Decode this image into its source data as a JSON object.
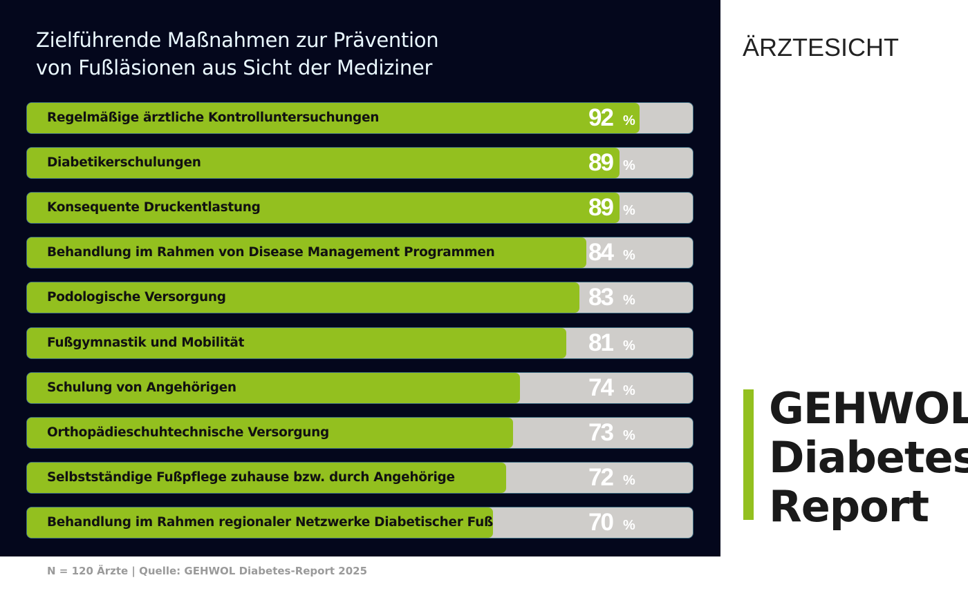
{
  "chart_data": {
    "type": "bar",
    "orientation": "horizontal",
    "title": "Zielführende Maßnahmen zur Prävention von Fußläsionen aus Sicht der Mediziner",
    "title_lines": [
      "Zielführende Maßnahmen zur Prävention",
      "von Fußläsionen aus Sicht der Mediziner"
    ],
    "categories": [
      "Regelmäßige ärztliche Kontrolluntersuchungen",
      "Diabetikerschulungen",
      "Konsequente Druckentlastung",
      "Behandlung im Rahmen von Disease Management Programmen",
      "Podologische Versorgung",
      "Fußgymnastik und Mobilität",
      "Schulung von Angehörigen",
      "Orthopädieschuhtechnische Versorgung",
      "Selbstständige Fußpflege zuhause bzw. durch Angehörige",
      "Behandlung im Rahmen regionaler Netzwerke Diabetischer Fuß"
    ],
    "values": [
      92,
      89,
      89,
      84,
      83,
      81,
      74,
      73,
      72,
      70
    ],
    "unit": "%",
    "xlim": [
      0,
      100
    ],
    "grid": false,
    "colors": {
      "bar": "#93c01f",
      "track": "#cfcdca",
      "background": "#04071c"
    }
  },
  "footer": "N = 120 Ärzte | Quelle: GEHWOL Diabetes-Report 2025",
  "side_label": "ÄRZTESICHT",
  "logo": {
    "lines": [
      "GEHWOL",
      "Diabetes",
      "Report"
    ],
    "accent": "#93c01f"
  }
}
